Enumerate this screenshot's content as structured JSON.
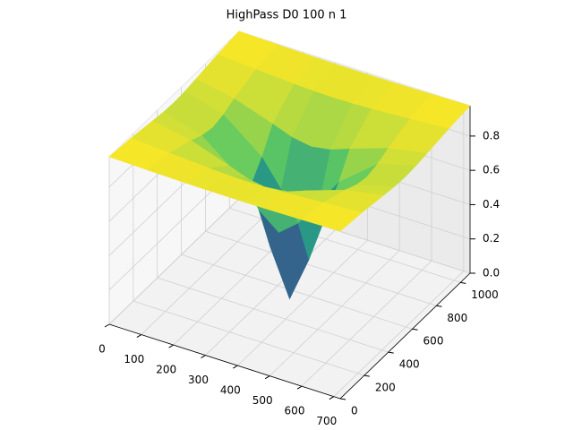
{
  "chart_data": {
    "type": "surface",
    "title": "HighPass D0 100 n 1",
    "colormap": "viridis",
    "x": [
      0,
      120,
      240,
      300,
      360,
      420,
      480,
      600,
      720
    ],
    "y": [
      0,
      180,
      360,
      450,
      540,
      630,
      720,
      900,
      1080
    ],
    "z": [
      [
        0.977,
        0.972,
        0.968,
        0.967,
        0.967,
        0.967,
        0.968,
        0.972,
        0.977
      ],
      [
        0.963,
        0.949,
        0.935,
        0.93,
        0.928,
        0.93,
        0.935,
        0.949,
        0.963
      ],
      [
        0.942,
        0.9,
        0.824,
        0.783,
        0.764,
        0.783,
        0.824,
        0.9,
        0.942
      ],
      [
        0.932,
        0.868,
        0.692,
        0.539,
        0.448,
        0.539,
        0.692,
        0.868,
        0.932
      ],
      [
        0.928,
        0.852,
        0.59,
        0.265,
        0,
        0.265,
        0.59,
        0.852,
        0.928
      ],
      [
        0.932,
        0.868,
        0.692,
        0.539,
        0.448,
        0.539,
        0.692,
        0.868,
        0.932
      ],
      [
        0.942,
        0.9,
        0.824,
        0.783,
        0.764,
        0.783,
        0.824,
        0.9,
        0.942
      ],
      [
        0.963,
        0.949,
        0.935,
        0.93,
        0.928,
        0.93,
        0.935,
        0.949,
        0.963
      ],
      [
        0.977,
        0.972,
        0.968,
        0.967,
        0.967,
        0.967,
        0.968,
        0.972,
        0.977
      ]
    ],
    "xlim": [
      0,
      720
    ],
    "ylim": [
      0,
      1080
    ],
    "zlim": [
      0,
      0.977
    ],
    "xticks": [
      0,
      100,
      200,
      300,
      400,
      500,
      600,
      700
    ],
    "yticks": [
      0,
      200,
      400,
      600,
      800,
      1000
    ],
    "zticks": [
      {
        "value": 0,
        "label": "0.0"
      },
      0.2,
      0.4,
      0.6,
      0.8
    ],
    "grid": true
  }
}
